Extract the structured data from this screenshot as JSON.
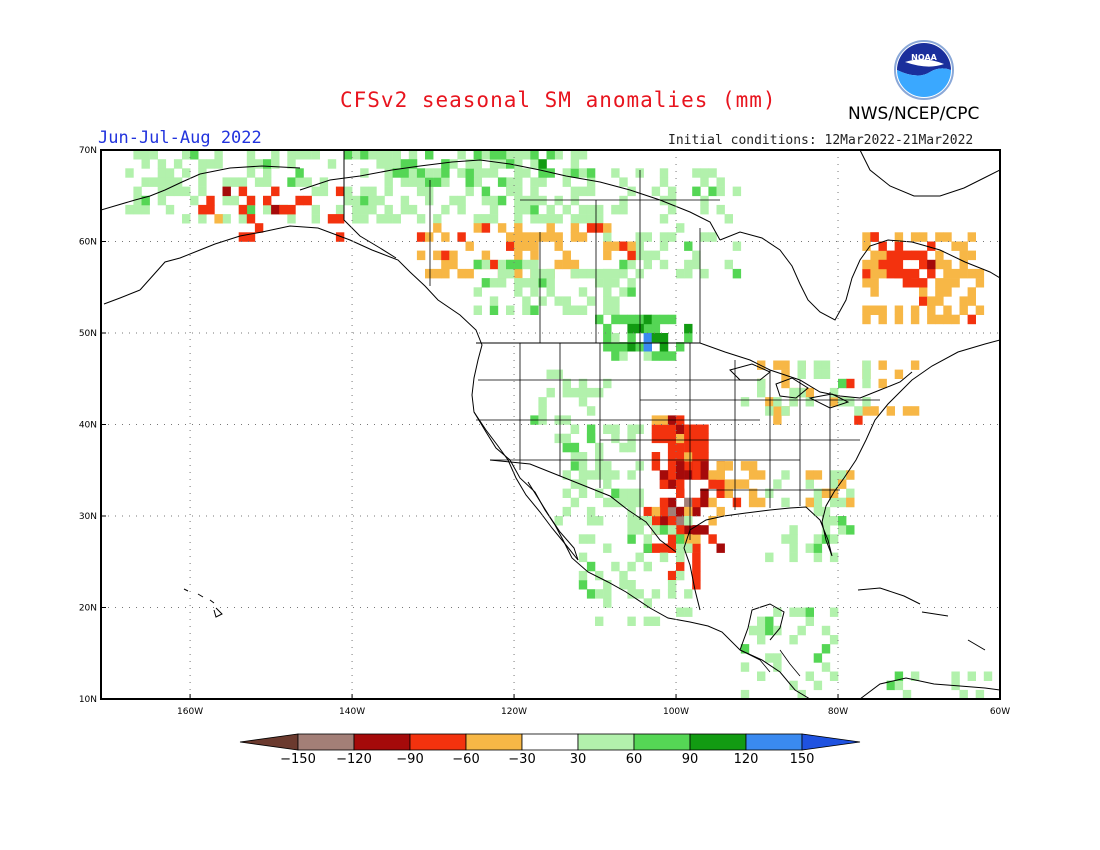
{
  "header": {
    "title": "CFSv2 seasonal SM anomalies (mm)",
    "org": "NWS/NCEP/CPC",
    "logo_text": "NOAA",
    "season": "Jun-Jul-Aug 2022",
    "initial_conditions": "Initial conditions: 12Mar2022-21Mar2022"
  },
  "map": {
    "projection": "lat-lon",
    "lon_range": [
      -171,
      -60
    ],
    "lat_range": [
      10,
      70
    ],
    "lat_ticks": [
      {
        "value": 70,
        "label": "70N"
      },
      {
        "value": 60,
        "label": "60N"
      },
      {
        "value": 50,
        "label": "50N"
      },
      {
        "value": 40,
        "label": "40N"
      },
      {
        "value": 30,
        "label": "30N"
      },
      {
        "value": 20,
        "label": "20N"
      },
      {
        "value": 10,
        "label": "10N"
      }
    ],
    "lon_ticks": [
      {
        "value": -160,
        "label": "160W"
      },
      {
        "value": -140,
        "label": "140W"
      },
      {
        "value": -120,
        "label": "120W"
      },
      {
        "value": -100,
        "label": "100W"
      },
      {
        "value": -80,
        "label": "80W"
      },
      {
        "value": -60,
        "label": "60W"
      }
    ],
    "grid": "dotted",
    "regions": [
      {
        "name": "Alaska-north wet",
        "lon": [
          -168,
          -140
        ],
        "lat": [
          62,
          70
        ],
        "class": 6,
        "density": 0.45
      },
      {
        "name": "Alaska-north mixed dry",
        "lon": [
          -160,
          -140
        ],
        "lat": [
          60,
          66
        ],
        "class": 3,
        "density": 0.15
      },
      {
        "name": "NW Canada wet",
        "lon": [
          -140,
          -110
        ],
        "lat": [
          62,
          70
        ],
        "class": 6,
        "density": 0.55
      },
      {
        "name": "Arctic strong wet",
        "lon": [
          -135,
          -115
        ],
        "lat": [
          66,
          70
        ],
        "class": 7,
        "density": 0.25
      },
      {
        "name": "W Canada mild dry",
        "lon": [
          -132,
          -112
        ],
        "lat": [
          56,
          62
        ],
        "class": 4,
        "density": 0.5
      },
      {
        "name": "W Canada wet",
        "lon": [
          -125,
          -105
        ],
        "lat": [
          52,
          58
        ],
        "class": 6,
        "density": 0.55
      },
      {
        "name": "Prairie wet",
        "lon": [
          -110,
          -98
        ],
        "lat": [
          47,
          52
        ],
        "class": 7,
        "density": 0.6
      },
      {
        "name": "Prairie strong wet",
        "lon": [
          -106,
          -101
        ],
        "lat": [
          48,
          51
        ],
        "class": 8,
        "density": 0.45
      },
      {
        "name": "Hudson mild wet",
        "lon": [
          -110,
          -92
        ],
        "lat": [
          56,
          68
        ],
        "class": 6,
        "density": 0.3
      },
      {
        "name": "Hudson mild dry",
        "lon": [
          -112,
          -104
        ],
        "lat": [
          58,
          62
        ],
        "class": 4,
        "density": 0.4
      },
      {
        "name": "Quebec dry",
        "lon": [
          -77,
          -62
        ],
        "lat": [
          51,
          61
        ],
        "class": 4,
        "density": 0.5
      },
      {
        "name": "Quebec strong dry",
        "lon": [
          -76,
          -68
        ],
        "lat": [
          55,
          61
        ],
        "class": 3,
        "density": 0.4
      },
      {
        "name": "Great Plains strong dry",
        "lon": [
          -103,
          -96
        ],
        "lat": [
          35,
          41
        ],
        "class": 3,
        "density": 0.75
      },
      {
        "name": "Texas very dry",
        "lon": [
          -103,
          -96
        ],
        "lat": [
          28,
          36
        ],
        "class": 2,
        "density": 0.55
      },
      {
        "name": "Texas dry",
        "lon": [
          -104,
          -94
        ],
        "lat": [
          26,
          36
        ],
        "class": 3,
        "density": 0.35
      },
      {
        "name": "Mississippi mild dry",
        "lon": [
          -96,
          -89
        ],
        "lat": [
          30,
          36
        ],
        "class": 4,
        "density": 0.55
      },
      {
        "name": "Mexico dry",
        "lon": [
          -102,
          -97
        ],
        "lat": [
          22,
          28
        ],
        "class": 3,
        "density": 0.35
      },
      {
        "name": "SW US wet",
        "lon": [
          -115,
          -104
        ],
        "lat": [
          29,
          40
        ],
        "class": 6,
        "density": 0.45
      },
      {
        "name": "Great Basin mild wet",
        "lon": [
          -118,
          -106
        ],
        "lat": [
          38,
          46
        ],
        "class": 6,
        "density": 0.3
      },
      {
        "name": "Mexico wet",
        "lon": [
          -112,
          -98
        ],
        "lat": [
          18,
          30
        ],
        "class": 6,
        "density": 0.3
      },
      {
        "name": "Southeast wet",
        "lon": [
          -89,
          -78
        ],
        "lat": [
          25,
          35
        ],
        "class": 6,
        "density": 0.35
      },
      {
        "name": "Southeast dry",
        "lon": [
          -84,
          -78
        ],
        "lat": [
          31,
          35
        ],
        "class": 4,
        "density": 0.35
      },
      {
        "name": "Great Lakes mixed",
        "lon": [
          -90,
          -70
        ],
        "lat": [
          40,
          47
        ],
        "class": 4,
        "density": 0.25
      },
      {
        "name": "Great Lakes wet",
        "lon": [
          -92,
          -76
        ],
        "lat": [
          41,
          47
        ],
        "class": 6,
        "density": 0.25
      },
      {
        "name": "Central America wet",
        "lon": [
          -92,
          -80
        ],
        "lat": [
          10,
          20
        ],
        "class": 6,
        "density": 0.3
      },
      {
        "name": "Caribbean wet",
        "lon": [
          -75,
          -60
        ],
        "lat": [
          10,
          13
        ],
        "class": 6,
        "density": 0.35
      }
    ]
  },
  "colorbar": {
    "colors": [
      "#6b3a2e",
      "#a37f77",
      "#a50a0a",
      "#f3320e",
      "#f7b746",
      "#ffffff",
      "#b2f1ac",
      "#55d655",
      "#129b12",
      "#3a8af0",
      "#1f52e0"
    ],
    "labels": [
      "−150",
      "−120",
      "−90",
      "−60",
      "−30",
      "30",
      "60",
      "90",
      "120",
      "150"
    ]
  }
}
